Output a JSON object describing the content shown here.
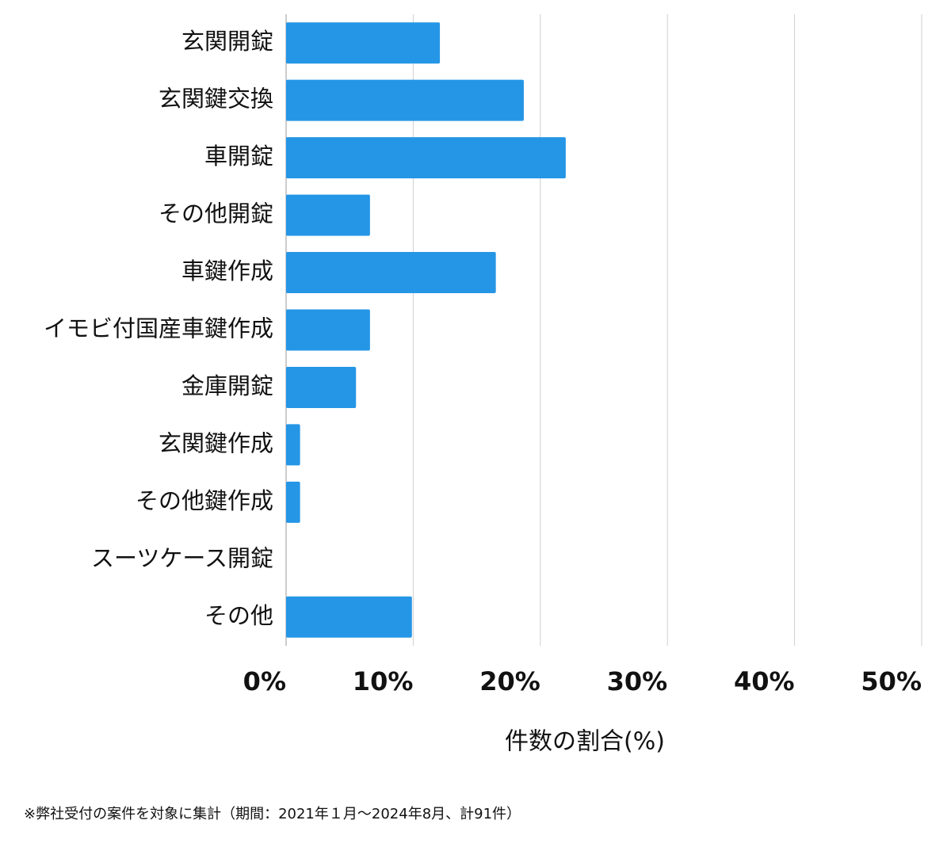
{
  "chart_data": {
    "type": "bar",
    "orientation": "horizontal",
    "categories": [
      "玄関開錠",
      "玄関鍵交換",
      "車開錠",
      "その他開錠",
      "車鍵作成",
      "イモビ付国産車鍵作成",
      "金庫開錠",
      "玄関鍵作成",
      "その他鍵作成",
      "スーツケース開錠",
      "その他"
    ],
    "values": [
      12.1,
      18.7,
      22.0,
      6.6,
      16.5,
      6.6,
      5.5,
      1.1,
      1.1,
      0,
      9.9
    ],
    "color": "#2596e6",
    "xlim": [
      0,
      50
    ],
    "xticks": [
      {
        "value": 0,
        "label": "0%"
      },
      {
        "value": 10,
        "label": "10%"
      },
      {
        "value": 20,
        "label": "20%"
      },
      {
        "value": 30,
        "label": "30%"
      },
      {
        "value": 40,
        "label": "40%"
      },
      {
        "value": 50,
        "label": "50%"
      }
    ],
    "xlabel": "件数の割合(%)",
    "grid": true,
    "footnote": "※弊社受付の案件を対象に集計（期間：2021年１月～2024年8月、計91件）"
  }
}
